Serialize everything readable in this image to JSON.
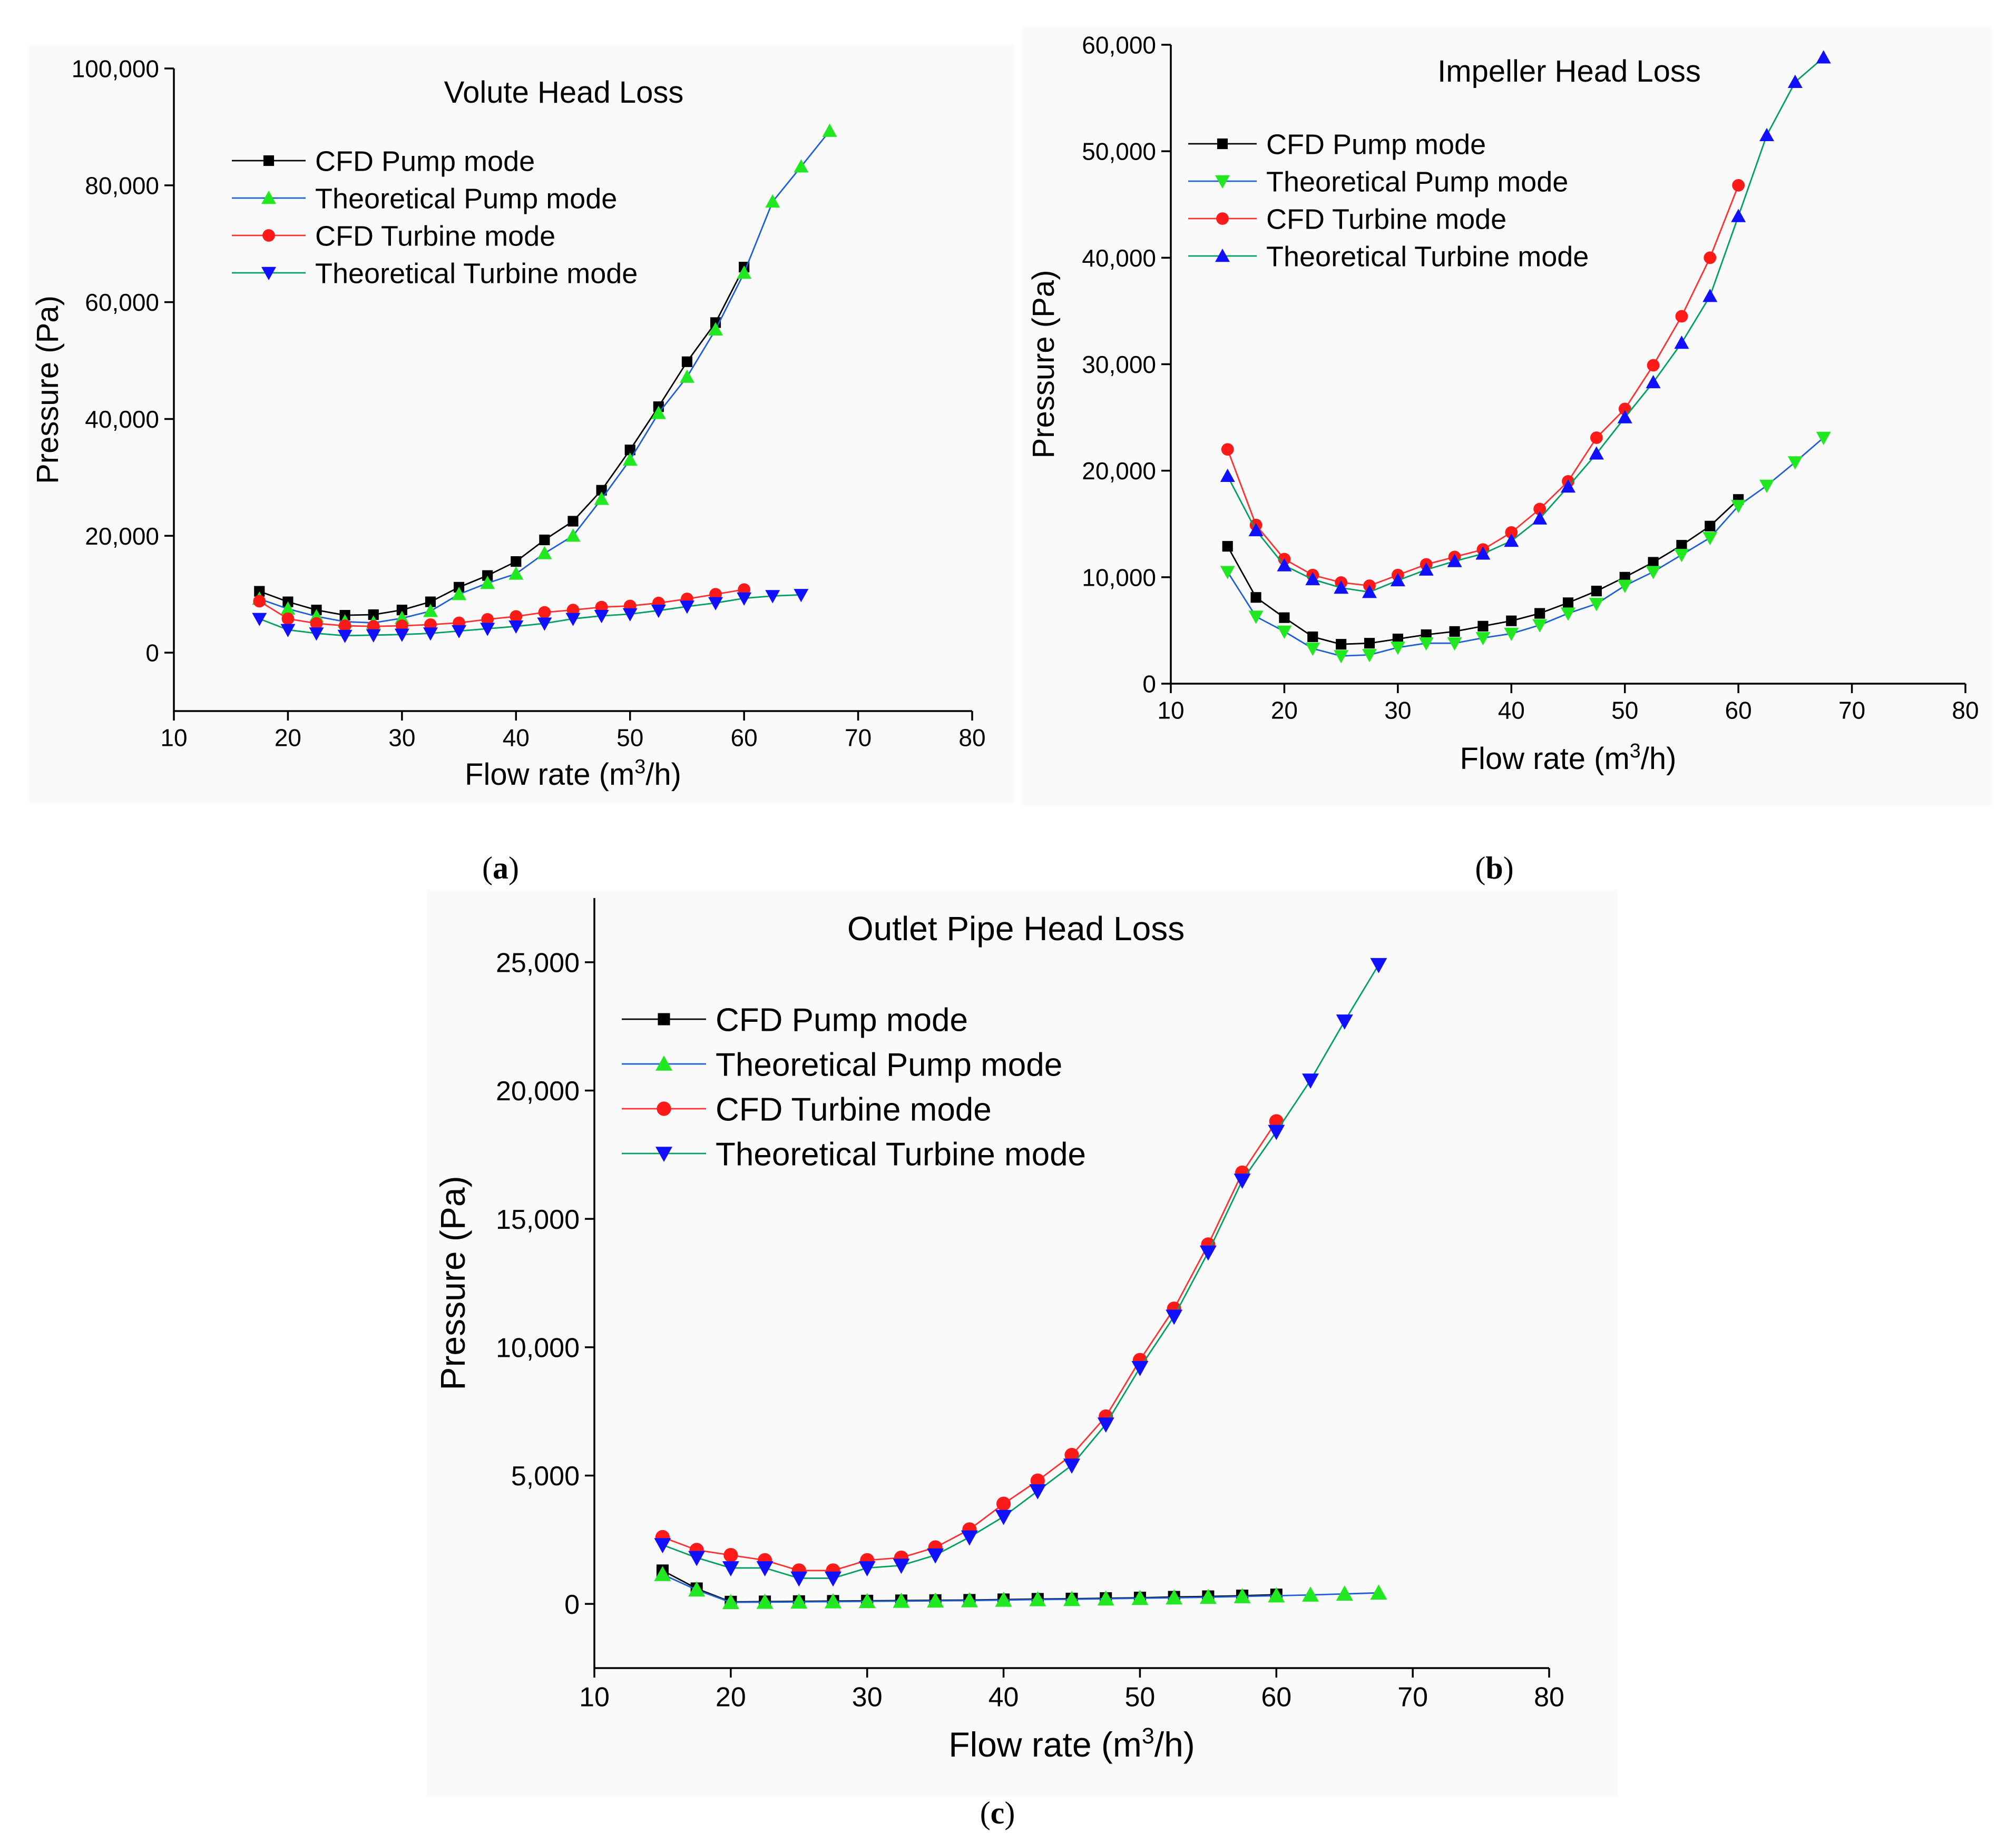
{
  "figure": {
    "subcaptions": [
      {
        "open": "(",
        "letter": "a",
        "close": ")"
      },
      {
        "open": "(",
        "letter": "b",
        "close": ")"
      },
      {
        "open": "(",
        "letter": "c",
        "close": ")"
      }
    ]
  },
  "colors": {
    "CFD Pump mode": {
      "line": "#000000",
      "marker": "#000000"
    },
    "Theoretical Pump mode": {
      "line": "#1f5fd6",
      "marker": "#22e822"
    },
    "CFD Turbine mode": {
      "line": "#ff3030",
      "marker": "#ff1a1a"
    },
    "Theoretical Turbine mode": {
      "line": "#00a060",
      "marker": "#1010ff"
    }
  },
  "chart_data": [
    {
      "id": "a",
      "type": "line",
      "title": "Volute Head Loss",
      "xlabel": "Flow rate (m3/h)",
      "xlabel_parts": {
        "pre": "Flow rate (m",
        "sup": "3",
        "post": "/h)"
      },
      "ylabel": "Pressure (Pa)",
      "xlim": [
        10,
        80
      ],
      "ylim": [
        -10000,
        100000
      ],
      "xticks": [
        10,
        20,
        30,
        40,
        50,
        60,
        70,
        80
      ],
      "yticks": [
        0,
        20000,
        40000,
        60000,
        80000,
        100000
      ],
      "ytick_labels": [
        "0",
        "20,000",
        "40,000",
        "60,000",
        "80,000",
        "100,000"
      ],
      "series": [
        {
          "name": "CFD Pump mode",
          "marker": "square",
          "x": [
            17.5,
            20,
            22.5,
            25,
            27.5,
            30,
            32.5,
            35,
            37.5,
            40,
            42.5,
            45,
            47.5,
            50,
            52.5,
            55,
            57.5,
            60
          ],
          "y": [
            10500,
            8700,
            7300,
            6400,
            6500,
            7300,
            8700,
            11200,
            13200,
            15600,
            19300,
            22500,
            27800,
            34700,
            42100,
            49800,
            56500,
            66000
          ]
        },
        {
          "name": "Theoretical Pump mode",
          "marker": "triangle-up",
          "x": [
            17.5,
            20,
            22.5,
            25,
            27.5,
            30,
            32.5,
            35,
            37.5,
            40,
            42.5,
            45,
            47.5,
            50,
            52.5,
            55,
            57.5,
            60,
            62.5,
            65,
            67.5
          ],
          "y": [
            9200,
            7500,
            6200,
            5300,
            5100,
            5900,
            7100,
            10000,
            11900,
            13500,
            17000,
            20000,
            26300,
            33000,
            41000,
            47200,
            55300,
            65000,
            77200,
            83200,
            89300
          ]
        },
        {
          "name": "CFD Turbine mode",
          "marker": "circle",
          "x": [
            17.5,
            20,
            22.5,
            25,
            27.5,
            30,
            32.5,
            35,
            37.5,
            40,
            42.5,
            45,
            47.5,
            50,
            52.5,
            55,
            57.5,
            60
          ],
          "y": [
            8800,
            5800,
            5000,
            4600,
            4500,
            4600,
            4800,
            5100,
            5700,
            6200,
            6900,
            7300,
            7800,
            8000,
            8500,
            9200,
            10000,
            10800
          ]
        },
        {
          "name": "Theoretical Turbine mode",
          "marker": "triangle-down",
          "x": [
            17.5,
            20,
            22.5,
            25,
            27.5,
            30,
            32.5,
            35,
            37.5,
            40,
            42.5,
            45,
            47.5,
            50,
            52.5,
            55,
            57.5,
            60,
            62.5,
            65
          ],
          "y": [
            5800,
            3900,
            3300,
            2900,
            3000,
            3100,
            3300,
            3700,
            4100,
            4500,
            5000,
            5800,
            6300,
            6600,
            7200,
            7900,
            8500,
            9300,
            9700,
            9900
          ]
        }
      ]
    },
    {
      "id": "b",
      "type": "line",
      "title": "Impeller Head Loss",
      "xlabel": "Flow rate (m3/h)",
      "xlabel_parts": {
        "pre": "Flow rate (m",
        "sup": "3",
        "post": "/h)"
      },
      "ylabel": "Pressure (Pa)",
      "xlim": [
        10,
        80
      ],
      "ylim": [
        0,
        60000
      ],
      "xticks": [
        10,
        20,
        30,
        40,
        50,
        60,
        70,
        80
      ],
      "yticks": [
        0,
        10000,
        20000,
        30000,
        40000,
        50000,
        60000
      ],
      "ytick_labels": [
        "0",
        "10,000",
        "20,000",
        "30,000",
        "40,000",
        "50,000",
        "60,000"
      ],
      "series": [
        {
          "name": "CFD Pump mode",
          "marker": "square",
          "x": [
            15,
            17.5,
            20,
            22.5,
            25,
            27.5,
            30,
            32.5,
            35,
            37.5,
            40,
            42.5,
            45,
            47.5,
            50,
            52.5,
            55,
            57.5,
            60
          ],
          "y": [
            12900,
            8100,
            6200,
            4400,
            3700,
            3800,
            4200,
            4600,
            4900,
            5400,
            5900,
            6600,
            7600,
            8700,
            10000,
            11400,
            13000,
            14800,
            17300
          ]
        },
        {
          "name": "Theoretical Pump mode",
          "marker": "triangle-down",
          "x": [
            15,
            17.5,
            20,
            22.5,
            25,
            27.5,
            30,
            32.5,
            35,
            37.5,
            40,
            42.5,
            45,
            47.5,
            50,
            52.5,
            55,
            57.5,
            60,
            62.5,
            65,
            67.5
          ],
          "y": [
            10500,
            6300,
            4900,
            3300,
            2600,
            2700,
            3400,
            3800,
            3800,
            4300,
            4700,
            5500,
            6600,
            7500,
            9200,
            10500,
            12100,
            13700,
            16700,
            18600,
            20800,
            23100
          ]
        },
        {
          "name": "CFD Turbine mode",
          "marker": "circle",
          "x": [
            15,
            17.5,
            20,
            22.5,
            25,
            27.5,
            30,
            32.5,
            35,
            37.5,
            40,
            42.5,
            45,
            47.5,
            50,
            52.5,
            55,
            57.5,
            60
          ],
          "y": [
            22000,
            14900,
            11700,
            10200,
            9500,
            9200,
            10200,
            11200,
            11900,
            12600,
            14200,
            16400,
            19000,
            23100,
            25800,
            29900,
            34500,
            40000,
            46800
          ]
        },
        {
          "name": "Theoretical Turbine mode",
          "marker": "triangle-up",
          "x": [
            15,
            17.5,
            20,
            22.5,
            25,
            27.5,
            30,
            32.5,
            35,
            37.5,
            40,
            42.5,
            45,
            47.5,
            50,
            52.5,
            55,
            57.5,
            60,
            62.5,
            65,
            67.5
          ],
          "y": [
            19500,
            14400,
            11100,
            9800,
            9000,
            8600,
            9700,
            10700,
            11500,
            12200,
            13400,
            15500,
            18500,
            21600,
            25000,
            28300,
            32000,
            36400,
            43900,
            51500,
            56500,
            58800
          ]
        }
      ]
    },
    {
      "id": "c",
      "type": "line",
      "title": "Outlet Pipe Head Loss",
      "xlabel": "Flow rate (m3/h)",
      "xlabel_parts": {
        "pre": "Flow rate (m",
        "sup": "3",
        "post": "/h)"
      },
      "ylabel": "Pressure (Pa)",
      "xlim": [
        10,
        80
      ],
      "ylim": [
        -2500,
        27500
      ],
      "xticks": [
        10,
        20,
        30,
        40,
        50,
        60,
        70,
        80
      ],
      "yticks": [
        0,
        5000,
        10000,
        15000,
        20000,
        25000
      ],
      "ytick_labels": [
        "0",
        "5,000",
        "10,000",
        "15,000",
        "20,000",
        "25,000"
      ],
      "series": [
        {
          "name": "CFD Pump mode",
          "marker": "square",
          "x": [
            15,
            17.5,
            20,
            22.5,
            25,
            27.5,
            30,
            32.5,
            35,
            37.5,
            40,
            42.5,
            45,
            47.5,
            50,
            52.5,
            55,
            57.5,
            60
          ],
          "y": [
            1300,
            600,
            80,
            90,
            100,
            110,
            120,
            130,
            140,
            150,
            170,
            190,
            200,
            220,
            240,
            270,
            290,
            320,
            360
          ]
        },
        {
          "name": "Theoretical Pump mode",
          "marker": "triangle-up",
          "x": [
            15,
            17.5,
            20,
            22.5,
            25,
            27.5,
            30,
            32.5,
            35,
            37.5,
            40,
            42.5,
            45,
            47.5,
            50,
            52.5,
            55,
            57.5,
            60,
            62.5,
            65,
            67.5
          ],
          "y": [
            1150,
            550,
            60,
            70,
            80,
            90,
            100,
            110,
            120,
            130,
            150,
            170,
            180,
            200,
            220,
            240,
            260,
            290,
            320,
            350,
            390,
            430
          ]
        },
        {
          "name": "CFD Turbine mode",
          "marker": "circle",
          "x": [
            15,
            17.5,
            20,
            22.5,
            25,
            27.5,
            30,
            32.5,
            35,
            37.5,
            40,
            42.5,
            45,
            47.5,
            50,
            52.5,
            55,
            57.5,
            60
          ],
          "y": [
            2600,
            2100,
            1900,
            1700,
            1300,
            1300,
            1700,
            1800,
            2200,
            2900,
            3900,
            4800,
            5800,
            7300,
            9500,
            11500,
            14000,
            16800,
            18800
          ]
        },
        {
          "name": "Theoretical Turbine mode",
          "marker": "triangle-down",
          "x": [
            15,
            17.5,
            20,
            22.5,
            25,
            27.5,
            30,
            32.5,
            35,
            37.5,
            40,
            42.5,
            45,
            47.5,
            50,
            52.5,
            55,
            57.5,
            60,
            62.5,
            65,
            67.5
          ],
          "y": [
            2300,
            1800,
            1400,
            1400,
            1000,
            1000,
            1400,
            1500,
            1900,
            2600,
            3400,
            4400,
            5400,
            7000,
            9200,
            11200,
            13700,
            16500,
            18400,
            20400,
            22700,
            24900
          ]
        }
      ]
    }
  ]
}
